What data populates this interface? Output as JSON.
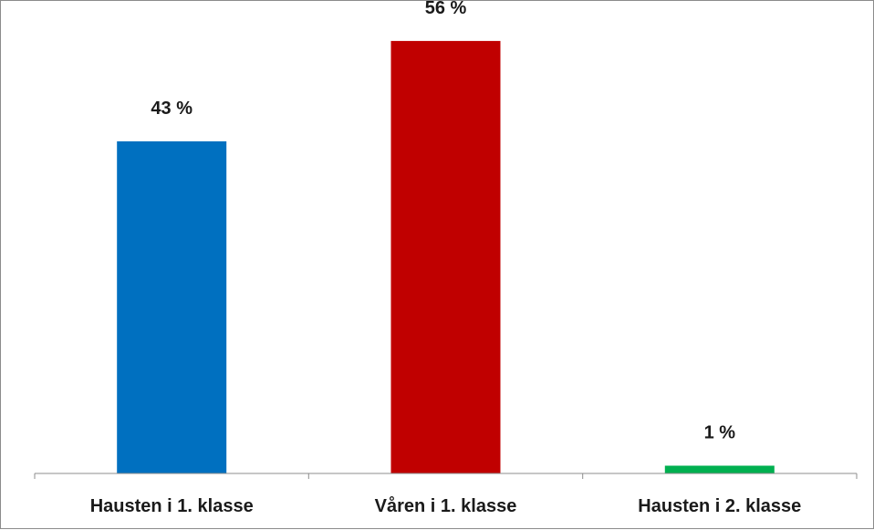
{
  "chart_data": {
    "type": "bar",
    "title": "",
    "xlabel": "",
    "ylabel": "",
    "categories": [
      "Hausten i 1. klasse",
      "Våren i 1. klasse",
      "Hausten i 2. klasse"
    ],
    "values": [
      43,
      56,
      1
    ],
    "value_labels": [
      "43 %",
      "56 %",
      "1 %"
    ],
    "colors": [
      "#0070c0",
      "#c00000",
      "#00b050"
    ],
    "ylim": [
      0,
      60
    ],
    "grid": false,
    "legend": "none",
    "axis_color": "#8c8c8c"
  }
}
